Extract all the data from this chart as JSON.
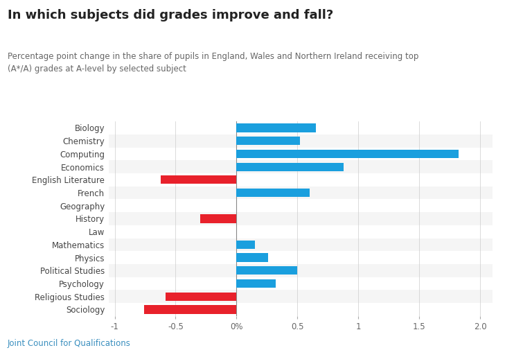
{
  "title": "In which subjects did grades improve and fall?",
  "subtitle": "Percentage point change in the share of pupils in England, Wales and Northern Ireland receiving top\n(A*/A) grades at A-level by selected subject",
  "footer": "Joint Council for Qualifications",
  "categories": [
    "Biology",
    "Chemistry",
    "Computing",
    "Economics",
    "English Literature",
    "French",
    "Geography",
    "History",
    "Law",
    "Mathematics",
    "Physics",
    "Political Studies",
    "Psychology",
    "Religious Studies",
    "Sociology"
  ],
  "values": [
    0.65,
    0.52,
    1.82,
    0.88,
    -0.62,
    0.6,
    0.0,
    -0.3,
    0.0,
    0.15,
    0.26,
    0.5,
    0.32,
    -0.58,
    -0.76
  ],
  "positive_color": "#1a9fde",
  "negative_color": "#e8212b",
  "background_color": "#f5f5f5",
  "row_white_color": "#ffffff",
  "xlim": [
    -1.05,
    2.1
  ],
  "xticks": [
    -1.0,
    -0.5,
    0.0,
    0.5,
    1.0,
    1.5,
    2.0
  ],
  "xtick_labels": [
    "-1",
    "-0.5",
    "0%",
    "0.5",
    "1",
    "1.5",
    "2.0"
  ],
  "title_fontsize": 13,
  "subtitle_fontsize": 8.5,
  "footer_fontsize": 8.5,
  "label_fontsize": 8.5,
  "tick_fontsize": 8.5,
  "title_color": "#222222",
  "subtitle_color": "#666666",
  "footer_color": "#3a8fbf",
  "label_color": "#444444",
  "tick_color": "#666666"
}
